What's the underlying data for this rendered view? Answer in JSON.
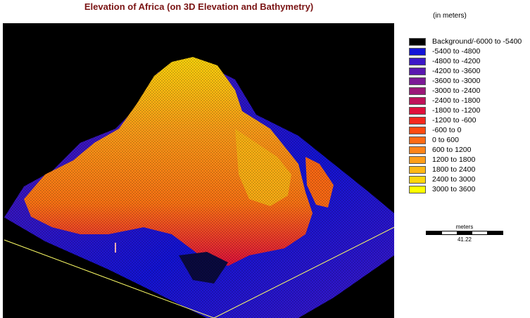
{
  "map": {
    "title": "Elevation of Africa (on 3D Elevation and Bathymetry)",
    "units_label": "(in meters)"
  },
  "legend": {
    "items": [
      {
        "label": "Background/-6000 to -5400",
        "color": "#000000"
      },
      {
        "label": "-5400 to -4800",
        "color": "#1414d8"
      },
      {
        "label": "-4800 to -4200",
        "color": "#3c18c8"
      },
      {
        "label": "-4200 to -3600",
        "color": "#5a18b0"
      },
      {
        "label": "-3600 to -3000",
        "color": "#7c1a96"
      },
      {
        "label": "-3000 to -2400",
        "color": "#9c1878"
      },
      {
        "label": "-2400 to -1800",
        "color": "#c0125a"
      },
      {
        "label": "-1800 to -1200",
        "color": "#e0103c"
      },
      {
        "label": "-1200 to -600",
        "color": "#f4281e"
      },
      {
        "label": "-600 to 0",
        "color": "#ff4a10"
      },
      {
        "label": "0 to 600",
        "color": "#ff6a14"
      },
      {
        "label": "600 to 1200",
        "color": "#ff8418"
      },
      {
        "label": "1200 to 1800",
        "color": "#ff9e18"
      },
      {
        "label": "1800 to 2400",
        "color": "#ffb814"
      },
      {
        "label": "2400 to 3000",
        "color": "#ffd60c"
      },
      {
        "label": "3000 to 3600",
        "color": "#ffff00"
      }
    ]
  },
  "scale": {
    "unit": "meters",
    "value": "41.22"
  }
}
